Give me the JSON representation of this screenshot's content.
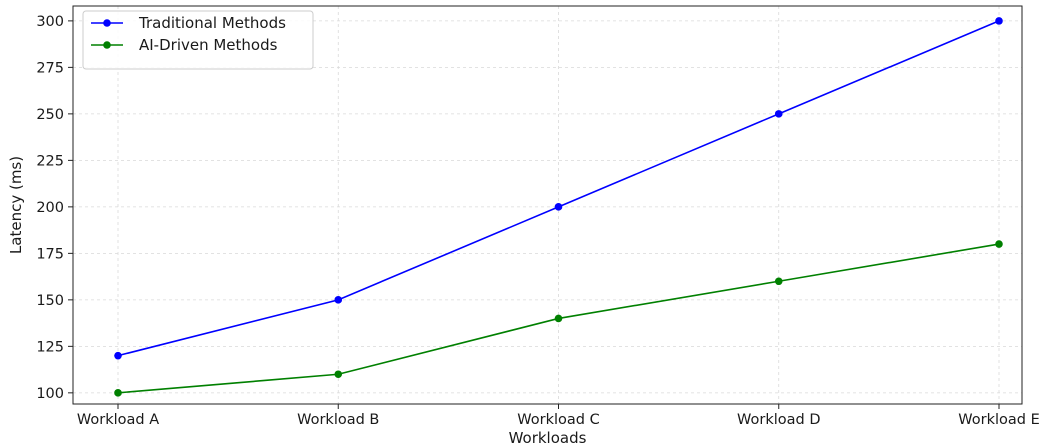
{
  "chart_data": {
    "type": "line",
    "categories": [
      "Workload A",
      "Workload B",
      "Workload C",
      "Workload D",
      "Workload E"
    ],
    "series": [
      {
        "name": "Traditional Methods",
        "values": [
          120,
          150,
          200,
          250,
          300
        ],
        "color": "#0000ff"
      },
      {
        "name": "AI-Driven Methods",
        "values": [
          100,
          110,
          140,
          160,
          180
        ],
        "color": "#008000"
      }
    ],
    "xlabel": "Workloads",
    "ylabel": "Latency (ms)",
    "ylim": [
      94,
      308
    ],
    "yticks": [
      100,
      125,
      150,
      175,
      200,
      225,
      250,
      275,
      300
    ],
    "grid": true,
    "legend_position": "top-left"
  }
}
